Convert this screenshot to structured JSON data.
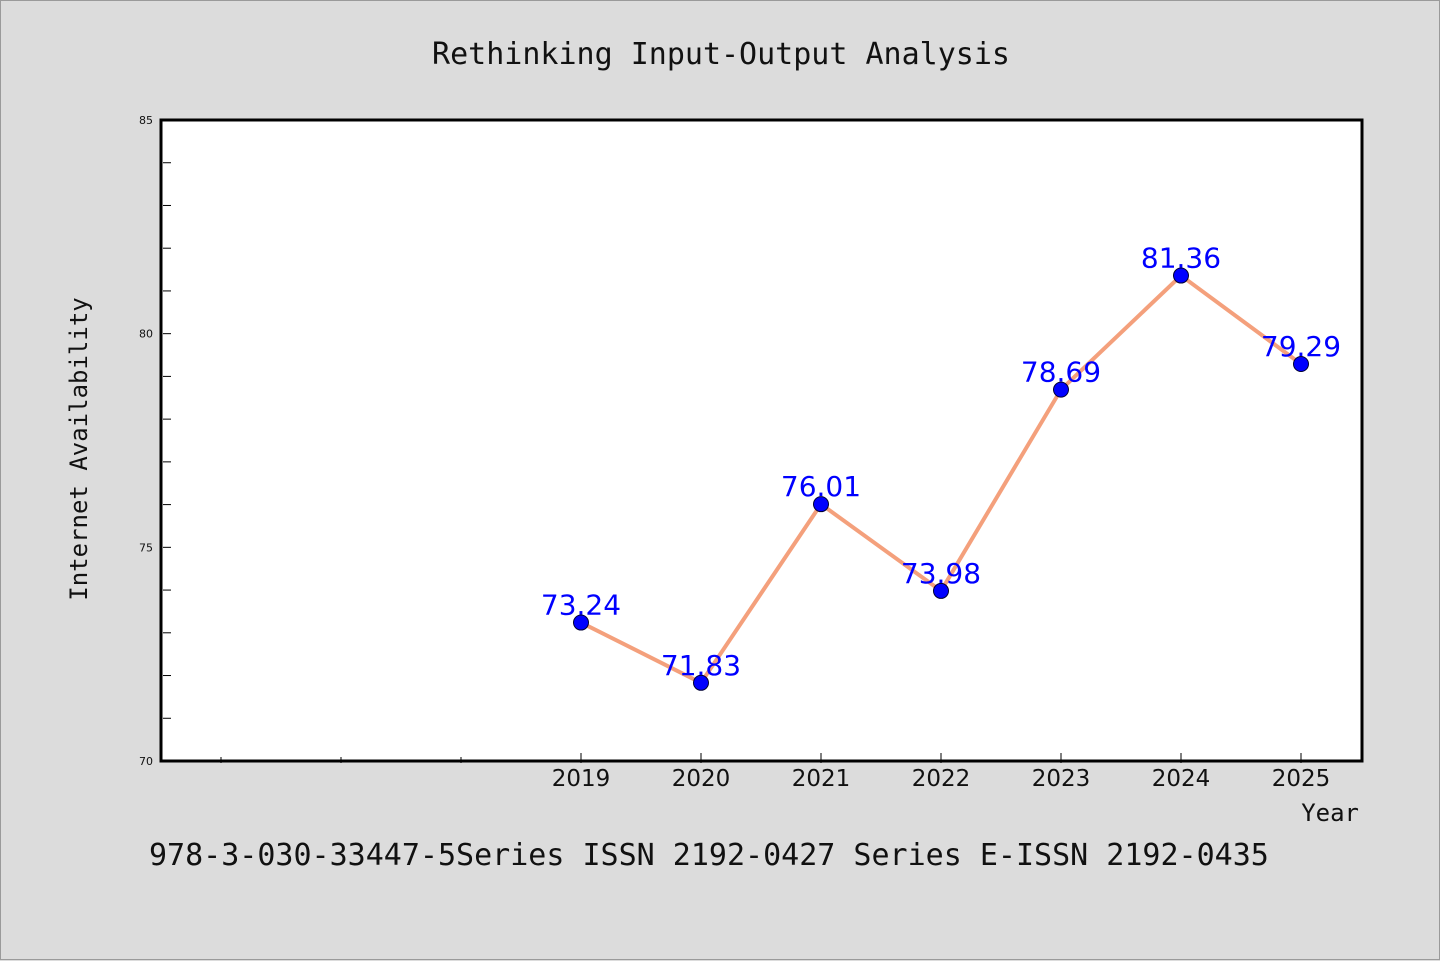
{
  "chart_data": {
    "type": "line",
    "title": "Rethinking Input-Output Analysis",
    "xlabel": "Year",
    "ylabel": "Internet Availability",
    "categories": [
      "2019",
      "2020",
      "2021",
      "2022",
      "2023",
      "2024",
      "2025"
    ],
    "series": [
      {
        "values": [
          73.24,
          71.83,
          76.01,
          73.98,
          78.69,
          81.36,
          79.29
        ],
        "line_color": "#f4a07c",
        "marker_color": "#0000ff"
      }
    ],
    "data_labels": [
      "73.24",
      "71.83",
      "76.01",
      "73.98",
      "78.69",
      "81.36",
      "79.29"
    ],
    "ylim": [
      70,
      85
    ],
    "yticks": [
      "70",
      "75",
      "80",
      "85"
    ],
    "grid": false,
    "legend": "none"
  },
  "footer": {
    "text": "978-3-030-33447-5Series ISSN 2192-0427 Series E-ISSN 2192-0435"
  }
}
